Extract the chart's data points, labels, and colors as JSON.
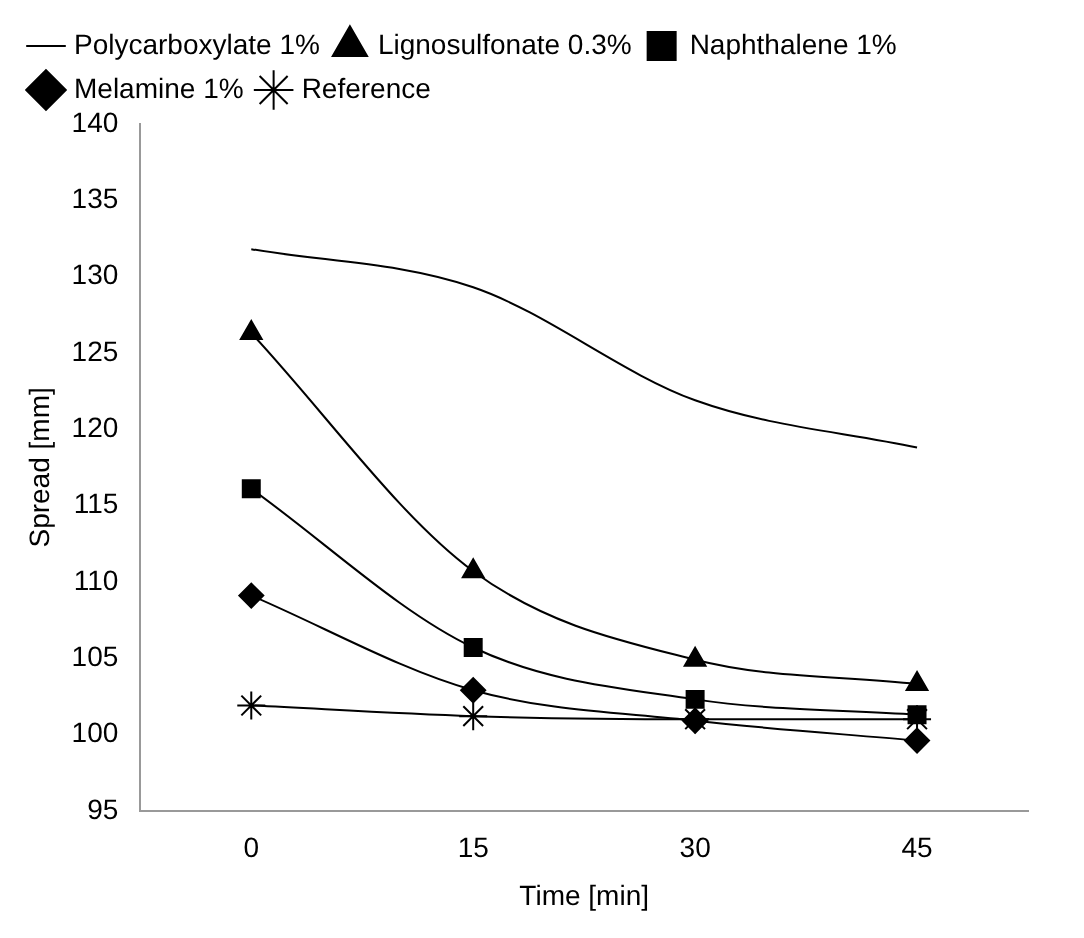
{
  "chart_data": {
    "type": "line",
    "xlabel": "Time [min]",
    "ylabel": "Spread [mm]",
    "categories": [
      "0",
      "15",
      "30",
      "45"
    ],
    "ylim": [
      95,
      140
    ],
    "yticks": [
      95,
      100,
      105,
      110,
      115,
      120,
      125,
      130,
      135,
      140
    ],
    "grid": false,
    "legend": "top",
    "series": [
      {
        "name": "Polycarboxylate 1%",
        "color": "#000000",
        "marker": "none",
        "values": [
          131.8,
          129.3,
          121.9,
          118.8
        ]
      },
      {
        "name": "Lignosulfonate 0.3%",
        "color": "#000000",
        "marker": "triangle",
        "values": [
          126.3,
          110.7,
          104.9,
          103.3
        ]
      },
      {
        "name": "Naphthalene 1%",
        "color": "#000000",
        "marker": "square",
        "values": [
          116.1,
          105.7,
          102.3,
          101.3
        ]
      },
      {
        "name": "Melamine 1%",
        "color": "#000000",
        "marker": "diamond",
        "values": [
          109.1,
          102.9,
          100.9,
          99.6
        ]
      },
      {
        "name": "Reference",
        "color": "#000000",
        "marker": "cross",
        "values": [
          101.9,
          101.2,
          101.0,
          101.0
        ]
      }
    ]
  }
}
